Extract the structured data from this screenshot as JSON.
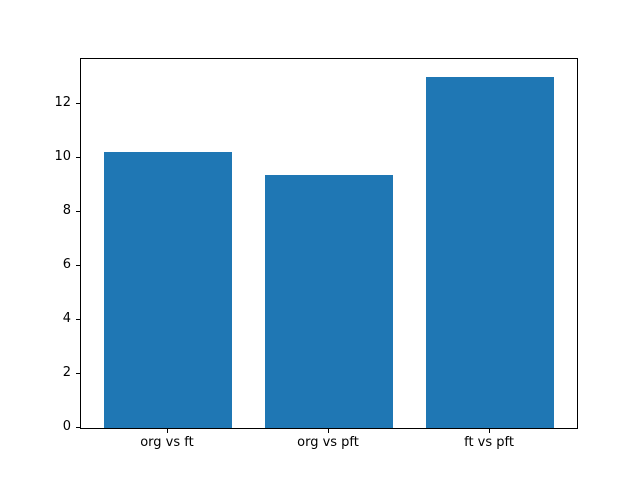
{
  "chart_data": {
    "type": "bar",
    "title": "",
    "xlabel": "",
    "ylabel": "",
    "categories": [
      "org vs ft",
      "org vs pft",
      "ft vs pft"
    ],
    "values": [
      10.2,
      9.35,
      13.0
    ],
    "yticks": [
      0,
      2,
      4,
      6,
      8,
      10,
      12
    ],
    "ylim": [
      0,
      13.65
    ],
    "xlim": [
      -0.54,
      2.54
    ],
    "bar_width": 0.8,
    "bar_color": "#1f77b4",
    "background_color": "#ffffff",
    "axis_color": "#000000",
    "grid": false,
    "legend": null
  }
}
